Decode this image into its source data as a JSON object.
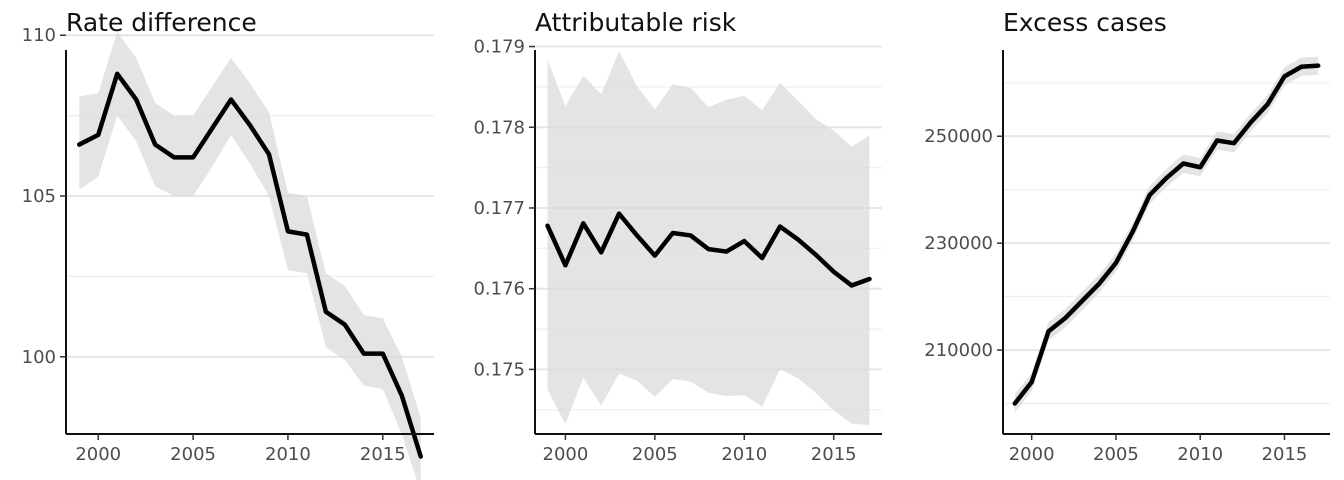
{
  "chart_data": [
    {
      "type": "line",
      "title": "Rate difference",
      "x": [
        1999,
        2000,
        2001,
        2002,
        2003,
        2004,
        2005,
        2006,
        2007,
        2008,
        2009,
        2010,
        2011,
        2012,
        2013,
        2014,
        2015,
        2016,
        2017
      ],
      "series": [
        {
          "values": [
            106.6,
            106.9,
            108.8,
            108.0,
            106.6,
            106.2,
            106.2,
            107.1,
            108.0,
            107.2,
            106.3,
            103.9,
            103.8,
            101.4,
            101.0,
            100.1,
            100.1,
            98.8,
            96.9
          ],
          "lower": [
            105.2,
            105.6,
            107.5,
            106.7,
            105.3,
            105.0,
            105.0,
            105.9,
            106.9,
            106.0,
            105.0,
            102.7,
            102.6,
            100.3,
            99.9,
            99.1,
            99.0,
            97.6,
            95.8
          ],
          "upper": [
            108.1,
            108.2,
            110.1,
            109.3,
            107.9,
            107.5,
            107.5,
            108.4,
            109.3,
            108.5,
            107.6,
            105.1,
            105.0,
            102.6,
            102.2,
            101.3,
            101.2,
            100.0,
            98.1
          ]
        }
      ],
      "xticks": [
        "2000",
        "2005",
        "2010",
        "2015"
      ],
      "yticks": [
        "100",
        "105",
        "110"
      ],
      "xlim": [
        1998.3,
        2017.7
      ],
      "ylim": [
        97.6,
        110.1
      ]
    },
    {
      "type": "line",
      "title": "Attributable risk",
      "x": [
        1999,
        2000,
        2001,
        2002,
        2003,
        2004,
        2005,
        2006,
        2007,
        2008,
        2009,
        2010,
        2011,
        2012,
        2013,
        2014,
        2015,
        2016,
        2017
      ],
      "series": [
        {
          "values": [
            0.17678,
            0.17629,
            0.17681,
            0.17645,
            0.17693,
            0.17666,
            0.17641,
            0.17669,
            0.17666,
            0.17649,
            0.17646,
            0.17659,
            0.17638,
            0.17677,
            0.17661,
            0.17642,
            0.17621,
            0.17604,
            0.17612
          ],
          "lower": [
            0.17475,
            0.17432,
            0.1749,
            0.17455,
            0.17495,
            0.17486,
            0.17466,
            0.17488,
            0.17485,
            0.17471,
            0.17467,
            0.17468,
            0.17454,
            0.175,
            0.17489,
            0.17471,
            0.17449,
            0.17433,
            0.17431
          ],
          "upper": [
            0.17884,
            0.17826,
            0.17864,
            0.17841,
            0.17894,
            0.17851,
            0.17822,
            0.17853,
            0.17849,
            0.17825,
            0.17834,
            0.17839,
            0.17821,
            0.17855,
            0.17833,
            0.1781,
            0.17796,
            0.17776,
            0.1779
          ]
        }
      ],
      "xticks": [
        "2000",
        "2005",
        "2010",
        "2015"
      ],
      "yticks": [
        "0.175",
        "0.176",
        "0.177",
        "0.178",
        "0.179"
      ],
      "xlim": [
        1998.3,
        2017.7
      ],
      "ylim": [
        0.1742,
        0.17918
      ]
    },
    {
      "type": "line",
      "title": "Excess cases",
      "x": [
        1999,
        2000,
        2001,
        2002,
        2003,
        2004,
        2005,
        2006,
        2007,
        2008,
        2009,
        2010,
        2011,
        2012,
        2013,
        2014,
        2015,
        2016,
        2017
      ],
      "series": [
        {
          "values": [
            200000,
            204000,
            213500,
            216000,
            219200,
            222400,
            226300,
            232200,
            239000,
            242200,
            244900,
            244200,
            249200,
            248700,
            252600,
            256000,
            261200,
            263000,
            263200
          ],
          "lower": [
            198300,
            202300,
            211800,
            214300,
            217500,
            220700,
            224600,
            230500,
            237300,
            240500,
            243200,
            242500,
            247500,
            247000,
            250900,
            254300,
            259500,
            261300,
            261500
          ],
          "upper": [
            201700,
            205700,
            215200,
            217700,
            220900,
            224100,
            228000,
            233900,
            240700,
            243900,
            246600,
            245900,
            250900,
            250400,
            254300,
            257700,
            262900,
            264700,
            264900
          ]
        }
      ],
      "xticks": [
        "2000",
        "2005",
        "2010",
        "2015"
      ],
      "yticks": [
        "210000",
        "230000",
        "250000"
      ],
      "xlim": [
        1998.3,
        2017.7
      ],
      "ylim": [
        194300,
        269500
      ]
    }
  ]
}
